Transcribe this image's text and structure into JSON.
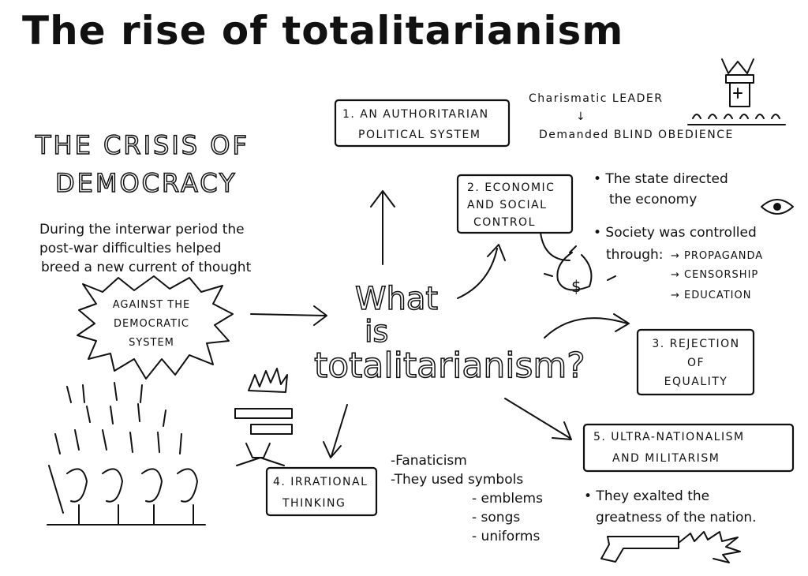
{
  "title": "The rise of totalitarianism",
  "crisis": {
    "heading": [
      "THE CRISIS OF",
      "DEMOCRACY"
    ],
    "text": [
      "During the interwar period the",
      "post-war difficulties helped",
      "breed a new current of thought"
    ],
    "burst": [
      "AGAINST THE",
      "DEMOCRATIC",
      "SYSTEM"
    ]
  },
  "center": [
    "What",
    "is",
    "totalitarianism?"
  ],
  "nodes": [
    {
      "label": [
        "1. AN AUTHORITARIAN",
        "POLITICAL SYSTEM"
      ],
      "notes": [
        "Charismatic LEADER",
        "↓",
        "Demanded BLIND OBEDIENCE"
      ]
    },
    {
      "label": [
        "2. ECONOMIC",
        "AND SOCIAL",
        "CONTROL"
      ],
      "notes": [
        "• The state directed",
        "the economy",
        "• Society was controlled",
        "through:",
        "→ PROPAGANDA",
        "→ CENSORSHIP",
        "→ EDUCATION"
      ],
      "icon": "$"
    },
    {
      "label": [
        "3. REJECTION",
        "OF",
        "EQUALITY"
      ],
      "notes": []
    },
    {
      "label": [
        "4. IRRATIONAL",
        "THINKING"
      ],
      "notes": [
        "-Fanaticism",
        "-They used symbols",
        "- emblems",
        "- songs",
        "- uniforms"
      ]
    },
    {
      "label": [
        "5. ULTRA-NATIONALISM",
        "AND MILITARISM"
      ],
      "notes": [
        "• They exalted the",
        "greatness of the nation."
      ]
    }
  ]
}
